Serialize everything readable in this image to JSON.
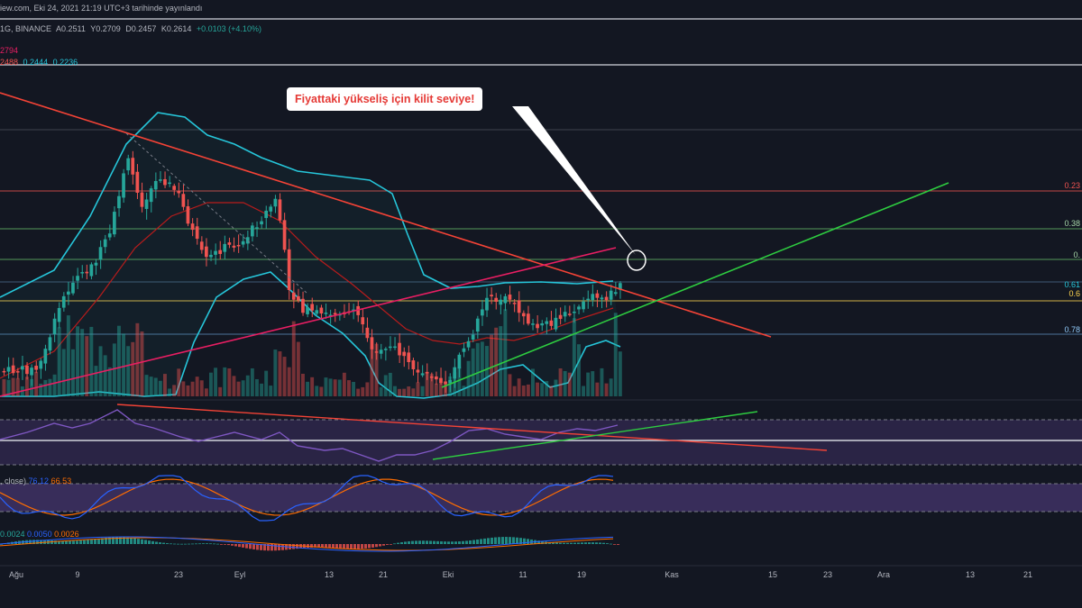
{
  "header": {
    "publish_line": "iew.com, Eki 24, 2021 21:19 UTC+3 tarihinde yayınlandı",
    "symbol_line": "1G, BINANCE",
    "ohlc": {
      "open": "A0.2511",
      "high": "Y0.2709",
      "low": "D0.2457",
      "close": "K0.2614",
      "change": "+0.0103 (+4.10%)"
    },
    "sub1": "2794",
    "sub2": [
      "2488",
      "0.2444",
      "0.2236"
    ]
  },
  "annotation": {
    "text": "Fiyattaki yükseliş için kilit seviye!"
  },
  "fib_labels": [
    "0.23",
    "0.38",
    "0.",
    "0.61",
    "0.6",
    "0.78"
  ],
  "stoch": {
    "label": ", close)",
    "k": "76.12",
    "d": "66.53"
  },
  "macd": {
    "hist": "0.0024",
    "macd": "0.0050",
    "signal": "0.0026"
  },
  "x_labels": [
    "Ağu",
    "9",
    "23",
    "Eyl",
    "13",
    "21",
    "Eki",
    "11",
    "19",
    "Kas",
    "15",
    "23",
    "Ara",
    "13",
    "21"
  ],
  "colors": {
    "bg": "#131722",
    "up": "#26a69a",
    "down": "#ef5350",
    "bb": "#26c6da",
    "ma": "#b71c1c",
    "resistance": "#f44336",
    "support": "#2ecc40",
    "pink_line": "#e91e63",
    "rsi": "#7e57c2",
    "stoch_k": "#2962ff",
    "stoch_d": "#ff6d00"
  },
  "chart_data": {
    "type": "candlestick",
    "symbol": "BINANCE",
    "interval": "1G",
    "x_axis_labels": [
      "Ağu",
      "9",
      "23",
      "Eyl",
      "13",
      "21",
      "Eki",
      "11",
      "19",
      "Kas",
      "15",
      "23",
      "Ara",
      "13",
      "21"
    ],
    "last_candle": {
      "open": 0.2511,
      "high": 0.2709,
      "low": 0.2457,
      "close": 0.2614,
      "change": 0.0103,
      "change_pct": 4.1
    },
    "annotation": "Fiyattaki yükseliş için kilit seviye!",
    "fib_level_labels": [
      "0.23",
      "0.38",
      "0.",
      "0.61",
      "0.6",
      "0.78"
    ],
    "indicators": [
      "Bollinger Bands",
      "Volume",
      "RSI",
      "Stochastic RSI",
      "MACD"
    ],
    "stoch_rsi": {
      "k": 76.12,
      "d": 66.53
    },
    "macd": {
      "histogram": 0.0024,
      "macd": 0.005,
      "signal": 0.0026
    }
  }
}
